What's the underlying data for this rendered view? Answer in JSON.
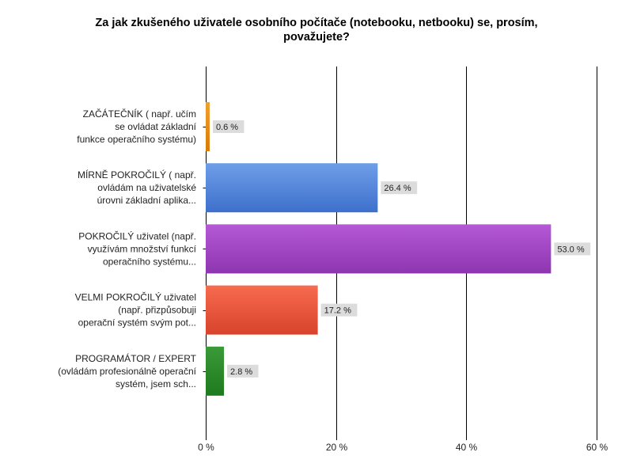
{
  "chart_data": {
    "type": "bar",
    "orientation": "horizontal",
    "title_lines": [
      "Za jak zkušeného uživatele osobního počítače (notebooku, netbooku) se, prosím,",
      "považujete?"
    ],
    "categories": [
      [
        "ZAČÁTEČNÍK ( např. učím",
        "se ovládat základní",
        "funkce operačního systému)"
      ],
      [
        "MÍRNĚ POKROČILÝ ( např.",
        "ovládám na uživatelské",
        "úrovni základní aplika..."
      ],
      [
        "POKROČILÝ uživatel (např.",
        "využívám množství funkcí",
        "operačního systému..."
      ],
      [
        "VELMI POKROČILÝ uživatel",
        "(např. přizpůsobuji",
        "operační systém svým pot..."
      ],
      [
        "PROGRAMÁTOR / EXPERT",
        "(ovládám profesionálně operační",
        "systém, jsem sch..."
      ]
    ],
    "values": [
      0.6,
      26.4,
      53.0,
      17.2,
      2.8
    ],
    "value_labels": [
      "0.6 %",
      "26.4 %",
      "53.0 %",
      "17.2 %",
      "2.8 %"
    ],
    "bar_colors": [
      [
        "#f0a030",
        "#d97a06"
      ],
      [
        "#6f9ee8",
        "#3d70cc"
      ],
      [
        "#b559d6",
        "#8e35b0"
      ],
      [
        "#f76b4f",
        "#d8432c"
      ],
      [
        "#3a9a38",
        "#1f7a1f"
      ]
    ],
    "xlim": [
      0,
      60
    ],
    "xticks": [
      0,
      20,
      40,
      60
    ],
    "xtick_labels": [
      "0 %",
      "20 %",
      "40 %",
      "60 %"
    ],
    "grid": true
  }
}
